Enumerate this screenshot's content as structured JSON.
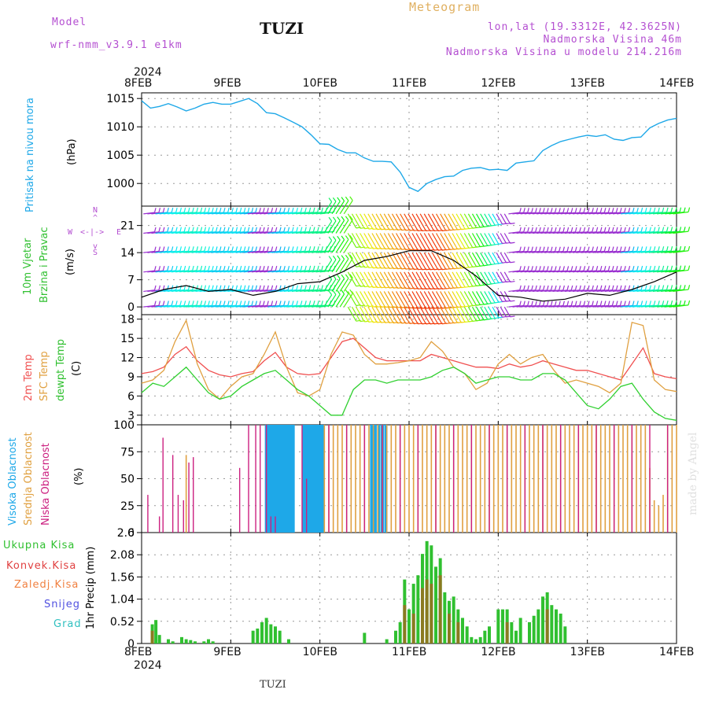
{
  "header": {
    "model_label": "Model",
    "model_name": "wrf-nmm_v3.9.1 e1km",
    "station": "TUZI",
    "meteogram": "Meteogram",
    "lonlat": "lon,lat (19.3312E, 42.3625N)",
    "altitude": "Nadmorska Visina 46m",
    "model_altitude": "Nadmorska Visina u modelu 214.216m"
  },
  "footer": {
    "station": "TUZI",
    "watermark": "made by Angel"
  },
  "colors": {
    "pressure": "#1ea8e8",
    "temp2m": "#f05050",
    "sfc": "#e0a040",
    "dewpt": "#30d030",
    "high_cloud": "#1ea8e8",
    "mid_cloud": "#e0a040",
    "low_cloud": "#cc2080",
    "total_precip": "#30c030",
    "conv_precip": "#e04040",
    "strat_precip": "#f08040",
    "snow": "#5050e0",
    "hail": "#30c0c0",
    "wind_speed": "#000000",
    "gust": "#f04040"
  },
  "x_axis": {
    "year": "2024",
    "ticks": [
      "8FEB",
      "9FEB",
      "10FEB",
      "11FEB",
      "12FEB",
      "13FEB",
      "14FEB"
    ]
  },
  "panels": {
    "pressure": {
      "label": "Pritisak na nivou mora",
      "unit": "(hPa)"
    },
    "wind": {
      "label1": "10m Vjetar",
      "label2": "Brzina i Pravac",
      "unit": "(m/s)",
      "compass_n": "N",
      "compass_w": "W",
      "compass_e": "E",
      "compass_s": "S"
    },
    "temp": {
      "label1": "2m Temp",
      "label2": "SFC Temp",
      "label3": "dewpt Temp",
      "unit": "(C)"
    },
    "cloud": {
      "label1": "Visoka Oblacnost",
      "label2": "Srednja Oblacnost",
      "label3": "Niska Oblacnost",
      "unit": "(%)"
    },
    "precip": {
      "label": "1hr Precip (mm)",
      "legend": [
        "Ukupna Kisa",
        "Konvek.Kisa",
        "Zaledj.Kisa",
        "Snijeg",
        "Grad"
      ]
    }
  },
  "chart_data": [
    {
      "type": "line",
      "title": "Pritisak na nivou mora",
      "ylabel": "(hPa)",
      "ylim": [
        996,
        1016
      ],
      "yticks": [
        1000,
        1005,
        1010,
        1015
      ],
      "grid": true,
      "series": [
        {
          "name": "Pritisak na nivou mora",
          "x": [
            0,
            0.1,
            0.2,
            0.3,
            0.4,
            0.5,
            0.6,
            0.7,
            0.8,
            0.9,
            1.0,
            1.1,
            1.2,
            1.3,
            1.4,
            1.5,
            1.6,
            1.7,
            1.8,
            1.9,
            2.0,
            2.1,
            2.2,
            2.3,
            2.4,
            2.5,
            2.6,
            2.7,
            2.8,
            2.9,
            3.0,
            3.1,
            3.2,
            3.3,
            3.4,
            3.5,
            3.6,
            3.7,
            3.8,
            3.9,
            4.0,
            4.1,
            4.2,
            4.3,
            4.4,
            4.5,
            4.6,
            4.7,
            4.8,
            4.9,
            5.0,
            5.1,
            5.2,
            5.3,
            5.4,
            5.5,
            5.6,
            5.7,
            5.8,
            5.9,
            6.0
          ],
          "values": [
            1014.6,
            1013.3,
            1013.6,
            1014.1,
            1013.5,
            1012.8,
            1013.3,
            1014.0,
            1014.3,
            1014.0,
            1014.0,
            1014.5,
            1015.0,
            1014.1,
            1012.5,
            1012.3,
            1011.6,
            1010.8,
            1010.0,
            1008.6,
            1007.0,
            1006.9,
            1006.0,
            1005.4,
            1005.4,
            1004.5,
            1003.9,
            1003.9,
            1003.8,
            1002.0,
            999.3,
            998.6,
            1000.0,
            1000.7,
            1001.2,
            1001.3,
            1002.3,
            1002.7,
            1002.8,
            1002.4,
            1002.5,
            1002.3,
            1003.6,
            1003.8,
            1004.0,
            1005.8,
            1006.7,
            1007.4,
            1007.8,
            1008.2,
            1008.5,
            1008.3,
            1008.6,
            1007.8,
            1007.6,
            1008.1,
            1008.2,
            1009.8,
            1010.6,
            1011.2,
            1011.5
          ]
        }
      ]
    },
    {
      "type": "line",
      "title": "10m Vjetar Brzina i Pravac",
      "ylabel": "(m/s)",
      "ylim": [
        -2,
        26
      ],
      "yticks": [
        0,
        7,
        14,
        21
      ],
      "grid": true,
      "series": [
        {
          "name": "10m Vjetar",
          "x": [
            0,
            0.25,
            0.5,
            0.75,
            1.0,
            1.25,
            1.5,
            1.75,
            2.0,
            2.25,
            2.5,
            2.75,
            3.0,
            3.25,
            3.5,
            3.75,
            4.0,
            4.25,
            4.5,
            4.75,
            5.0,
            5.25,
            5.5,
            5.75,
            6.0
          ],
          "values": [
            2.5,
            4.5,
            5.5,
            4.0,
            4.5,
            3.0,
            4.0,
            6.0,
            6.5,
            9.0,
            12.0,
            13.0,
            14.5,
            14.5,
            12.0,
            8.0,
            3.0,
            2.5,
            1.5,
            2.0,
            3.5,
            3.0,
            4.5,
            6.5,
            9.0
          ]
        }
      ]
    },
    {
      "type": "line",
      "title": "2m Temp / SFC Temp / dewpt Temp",
      "ylabel": "(C)",
      "ylim": [
        1.5,
        18.7
      ],
      "yticks": [
        3,
        6,
        9,
        12,
        15,
        18
      ],
      "grid": true,
      "x": [
        0,
        0.125,
        0.25,
        0.375,
        0.5,
        0.625,
        0.75,
        0.875,
        1.0,
        1.125,
        1.25,
        1.375,
        1.5,
        1.625,
        1.75,
        1.875,
        2.0,
        2.125,
        2.25,
        2.375,
        2.5,
        2.625,
        2.75,
        2.875,
        3.0,
        3.125,
        3.25,
        3.375,
        3.5,
        3.625,
        3.75,
        3.875,
        4.0,
        4.125,
        4.25,
        4.375,
        4.5,
        4.625,
        4.75,
        4.875,
        5.0,
        5.125,
        5.25,
        5.375,
        5.5,
        5.625,
        5.75,
        5.875,
        6.0
      ],
      "series": [
        {
          "name": "2m Temp",
          "values": [
            9.5,
            9.8,
            10.5,
            12.5,
            13.7,
            11.5,
            10.0,
            9.3,
            9.0,
            9.5,
            9.8,
            11.5,
            12.8,
            10.5,
            9.5,
            9.3,
            9.5,
            12.0,
            14.5,
            15.0,
            13.5,
            12.0,
            11.5,
            11.5,
            11.5,
            11.5,
            12.5,
            12.0,
            11.5,
            11.0,
            10.5,
            10.5,
            10.3,
            11.0,
            10.5,
            10.8,
            11.5,
            11.0,
            10.5,
            10.0,
            10.0,
            9.5,
            9.0,
            8.5,
            11.0,
            13.5,
            9.5,
            9.0,
            8.7
          ]
        },
        {
          "name": "SFC Temp",
          "values": [
            8.0,
            8.5,
            10.0,
            14.5,
            17.8,
            11.0,
            7.0,
            5.5,
            7.5,
            9.0,
            9.5,
            12.5,
            16.0,
            10.5,
            6.5,
            6.0,
            7.0,
            12.5,
            16.0,
            15.5,
            12.5,
            11.0,
            11.0,
            11.2,
            11.5,
            12.0,
            14.5,
            13.0,
            10.5,
            9.5,
            7.0,
            8.0,
            11.0,
            12.5,
            11.0,
            12.0,
            12.5,
            10.0,
            8.0,
            8.5,
            8.0,
            7.5,
            6.5,
            8.0,
            17.5,
            17.0,
            8.5,
            7.0,
            6.7
          ]
        },
        {
          "name": "dewpt Temp",
          "values": [
            6.5,
            8.0,
            7.5,
            9.0,
            10.5,
            8.5,
            6.5,
            5.5,
            6.0,
            7.5,
            8.5,
            9.5,
            10.0,
            8.5,
            7.0,
            6.0,
            4.5,
            3.0,
            3.0,
            7.0,
            8.5,
            8.5,
            8.0,
            8.5,
            8.5,
            8.5,
            9.0,
            10.0,
            10.5,
            9.5,
            8.0,
            8.5,
            9.0,
            9.0,
            8.5,
            8.5,
            9.5,
            9.5,
            8.5,
            6.5,
            4.5,
            4.0,
            5.5,
            7.5,
            8.0,
            5.5,
            3.5,
            2.5,
            2.2
          ]
        }
      ]
    },
    {
      "type": "bar",
      "title": "Visoka / Srednja / Niska Oblacnost",
      "ylabel": "(%)",
      "ylim": [
        0,
        100
      ],
      "yticks": [
        0,
        25,
        50,
        75,
        100
      ],
      "grid": true,
      "series": [
        {
          "name": "Visoka Oblacnost",
          "x": [
            1.4,
            1.43,
            1.46,
            1.49,
            1.52,
            1.55,
            1.58,
            1.61,
            1.64,
            1.67,
            1.7,
            1.82,
            1.85,
            1.88,
            1.91,
            1.94,
            1.97,
            2.0,
            2.03,
            2.58,
            2.62,
            2.66,
            2.7,
            2.74
          ],
          "values": [
            100,
            100,
            100,
            100,
            100,
            100,
            100,
            100,
            100,
            100,
            100,
            100,
            100,
            100,
            100,
            100,
            100,
            100,
            100,
            100,
            100,
            100,
            100,
            100
          ]
        },
        {
          "name": "Srednja Oblacnost",
          "x": [
            0.5,
            2.05,
            2.1,
            2.15,
            2.2,
            2.25,
            2.3,
            2.35,
            2.4,
            2.45,
            2.5,
            2.55,
            2.6,
            2.65,
            2.7,
            2.75,
            2.8,
            2.85,
            2.9,
            2.95,
            3.0,
            3.05,
            3.1,
            3.15,
            3.2,
            3.25,
            3.3,
            3.35,
            3.4,
            3.45,
            3.5,
            3.55,
            3.6,
            3.65,
            3.7,
            3.75,
            3.8,
            3.85,
            3.9,
            3.95,
            4.0,
            4.05,
            4.1,
            4.15,
            4.2,
            4.25,
            4.3,
            4.35,
            4.4,
            4.45,
            4.5,
            4.55,
            4.6,
            4.65,
            4.7,
            4.75,
            4.8,
            4.85,
            4.9,
            4.95,
            5.0,
            5.05,
            5.1,
            5.15,
            5.2,
            5.25,
            5.3,
            5.35,
            5.4,
            5.45,
            5.5,
            5.55,
            5.6,
            5.65,
            5.7,
            5.75,
            5.8,
            5.85,
            5.9,
            5.95,
            6.0
          ],
          "values": [
            72,
            100,
            100,
            100,
            100,
            100,
            100,
            100,
            100,
            100,
            100,
            100,
            100,
            100,
            100,
            100,
            100,
            100,
            100,
            100,
            100,
            100,
            100,
            100,
            100,
            100,
            100,
            100,
            100,
            100,
            100,
            100,
            100,
            100,
            100,
            100,
            100,
            100,
            100,
            100,
            100,
            100,
            100,
            100,
            100,
            100,
            100,
            100,
            100,
            100,
            100,
            100,
            100,
            100,
            100,
            100,
            100,
            100,
            100,
            100,
            100,
            100,
            100,
            100,
            100,
            100,
            100,
            100,
            100,
            100,
            100,
            100,
            100,
            100,
            60,
            30,
            25,
            35,
            100,
            100,
            100
          ]
        },
        {
          "name": "Niska Oblacnost",
          "x": [
            0.07,
            0.2,
            0.24,
            0.35,
            0.41,
            0.47,
            0.53,
            0.58,
            1.1,
            1.2,
            1.28,
            1.33,
            1.4,
            1.45,
            1.5,
            1.8,
            1.85,
            2.1,
            2.3,
            2.5,
            2.7,
            2.9,
            3.1,
            3.3,
            3.5,
            3.7,
            3.9,
            4.1,
            4.3,
            4.5,
            4.7,
            4.9,
            5.1,
            5.3,
            5.5,
            5.7,
            5.9
          ],
          "values": [
            35,
            15,
            88,
            72,
            35,
            30,
            65,
            70,
            60,
            100,
            100,
            100,
            100,
            15,
            15,
            100,
            50,
            100,
            100,
            100,
            100,
            100,
            100,
            100,
            100,
            100,
            100,
            100,
            100,
            100,
            100,
            100,
            100,
            100,
            100,
            100,
            100
          ]
        }
      ]
    },
    {
      "type": "bar",
      "title": "1hr Precip",
      "ylabel": "1hr Precip (mm)",
      "ylim": [
        0,
        2.6
      ],
      "yticks": [
        0,
        0.52,
        1.04,
        1.56,
        2.08,
        2.6
      ],
      "grid": true,
      "series": [
        {
          "name": "Ukupna Kisa",
          "x": [
            0.12,
            0.16,
            0.2,
            0.3,
            0.35,
            0.45,
            0.5,
            0.55,
            0.6,
            0.7,
            0.75,
            0.8,
            1.25,
            1.3,
            1.35,
            1.4,
            1.45,
            1.5,
            1.55,
            1.65,
            2.5,
            2.75,
            2.85,
            2.9,
            2.95,
            3.0,
            3.05,
            3.1,
            3.15,
            3.2,
            3.25,
            3.3,
            3.35,
            3.4,
            3.45,
            3.5,
            3.55,
            3.6,
            3.65,
            3.7,
            3.75,
            3.8,
            3.85,
            3.9,
            4.0,
            4.05,
            4.1,
            4.15,
            4.2,
            4.25,
            4.35,
            4.4,
            4.45,
            4.5,
            4.55,
            4.6,
            4.65,
            4.7,
            4.75
          ],
          "values": [
            0.45,
            0.55,
            0.2,
            0.1,
            0.05,
            0.15,
            0.1,
            0.08,
            0.05,
            0.05,
            0.1,
            0.05,
            0.3,
            0.35,
            0.5,
            0.6,
            0.45,
            0.4,
            0.3,
            0.1,
            0.25,
            0.1,
            0.3,
            0.5,
            1.5,
            0.8,
            1.4,
            1.6,
            2.1,
            2.4,
            2.3,
            1.8,
            2.0,
            1.2,
            1.0,
            1.1,
            0.8,
            0.6,
            0.4,
            0.15,
            0.1,
            0.15,
            0.3,
            0.4,
            0.8,
            0.8,
            0.8,
            0.5,
            0.3,
            0.6,
            0.5,
            0.65,
            0.8,
            1.1,
            1.2,
            0.9,
            0.8,
            0.7,
            0.4
          ]
        },
        {
          "name": "Konvek.Kisa",
          "x": [
            0.12,
            2.95,
            3.05,
            3.15,
            3.2,
            3.25,
            3.35,
            3.45,
            3.55,
            4.1,
            4.55
          ],
          "values": [
            0.3,
            0.9,
            0.7,
            1.3,
            1.5,
            1.4,
            1.6,
            0.7,
            0.5,
            0.5,
            0.8
          ]
        }
      ]
    }
  ]
}
